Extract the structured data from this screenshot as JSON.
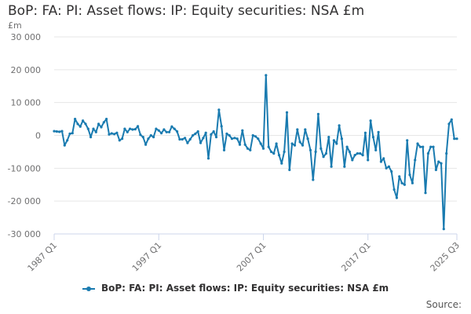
{
  "title": "BoP: FA: PI: Asset flows: IP: Equity securities: NSA £m",
  "unit_label": "£m",
  "source_label": "Source:",
  "colors": {
    "series": "#1a7bb0",
    "grid": "#e6e6e6",
    "axis": "#ccd6eb",
    "text": "#707071"
  },
  "chart_data": {
    "type": "line",
    "ylim": [
      -30000,
      30000
    ],
    "y_ticks": [
      30000,
      20000,
      10000,
      0,
      -10000,
      -20000,
      -30000
    ],
    "y_tick_labels": [
      "30 000",
      "20 000",
      "10 000",
      "0",
      "-10 000",
      "-20 000",
      "-30 000"
    ],
    "x_range": [
      "1987 Q1",
      "2025 Q3"
    ],
    "x_tick_labels": [
      "1987 Q1",
      "1997 Q1",
      "2007 Q1",
      "2017 Q1",
      "2025 Q3"
    ],
    "grid": "horizontal",
    "legend_position": "bottom",
    "series": [
      {
        "name": "BoP: FA: PI: Asset flows: IP: Equity securities: NSA £m",
        "points": [
          [
            "1987 Q1",
            1300
          ],
          [
            "1987 Q2",
            1200
          ],
          [
            "1987 Q3",
            1100
          ],
          [
            "1987 Q4",
            1300
          ],
          [
            "1988 Q1",
            -3000
          ],
          [
            "1988 Q2",
            -1500
          ],
          [
            "1988 Q3",
            500
          ],
          [
            "1988 Q4",
            700
          ],
          [
            "1989 Q1",
            5000
          ],
          [
            "1989 Q2",
            3500
          ],
          [
            "1989 Q3",
            2700
          ],
          [
            "1989 Q4",
            4500
          ],
          [
            "1990 Q1",
            3500
          ],
          [
            "1990 Q2",
            2000
          ],
          [
            "1990 Q3",
            -500
          ],
          [
            "1990 Q4",
            2000
          ],
          [
            "1991 Q1",
            1000
          ],
          [
            "1991 Q2",
            3500
          ],
          [
            "1991 Q3",
            2500
          ],
          [
            "1991 Q4",
            4000
          ],
          [
            "1992 Q1",
            5000
          ],
          [
            "1992 Q2",
            300
          ],
          [
            "1992 Q3",
            600
          ],
          [
            "1992 Q4",
            400
          ],
          [
            "1993 Q1",
            800
          ],
          [
            "1993 Q2",
            -1500
          ],
          [
            "1993 Q3",
            -1000
          ],
          [
            "1993 Q4",
            2000
          ],
          [
            "1994 Q1",
            1000
          ],
          [
            "1994 Q2",
            2000
          ],
          [
            "1994 Q3",
            1800
          ],
          [
            "1994 Q4",
            1900
          ],
          [
            "1995 Q1",
            2800
          ],
          [
            "1995 Q2",
            200
          ],
          [
            "1995 Q3",
            -500
          ],
          [
            "1995 Q4",
            -2800
          ],
          [
            "1996 Q1",
            -1000
          ],
          [
            "1996 Q2",
            0
          ],
          [
            "1996 Q3",
            -500
          ],
          [
            "1996 Q4",
            2000
          ],
          [
            "1997 Q1",
            1500
          ],
          [
            "1997 Q2",
            700
          ],
          [
            "1997 Q3",
            1800
          ],
          [
            "1997 Q4",
            1000
          ],
          [
            "1998 Q1",
            1000
          ],
          [
            "1998 Q2",
            2700
          ],
          [
            "1998 Q3",
            2000
          ],
          [
            "1998 Q4",
            1200
          ],
          [
            "1999 Q1",
            -1200
          ],
          [
            "1999 Q2",
            -1200
          ],
          [
            "1999 Q3",
            -800
          ],
          [
            "1999 Q4",
            -2300
          ],
          [
            "2000 Q1",
            -1200
          ],
          [
            "2000 Q2",
            0
          ],
          [
            "2000 Q3",
            500
          ],
          [
            "2000 Q4",
            1200
          ],
          [
            "2001 Q1",
            -2300
          ],
          [
            "2001 Q2",
            -800
          ],
          [
            "2001 Q3",
            800
          ],
          [
            "2001 Q4",
            -7000
          ],
          [
            "2002 Q1",
            300
          ],
          [
            "2002 Q2",
            1200
          ],
          [
            "2002 Q3",
            -500
          ],
          [
            "2002 Q4",
            7800
          ],
          [
            "2003 Q1",
            2800
          ],
          [
            "2003 Q2",
            -4500
          ],
          [
            "2003 Q3",
            500
          ],
          [
            "2003 Q4",
            0
          ],
          [
            "2004 Q1",
            -1000
          ],
          [
            "2004 Q2",
            -800
          ],
          [
            "2004 Q3",
            -1000
          ],
          [
            "2004 Q4",
            -2800
          ],
          [
            "2005 Q1",
            1500
          ],
          [
            "2005 Q2",
            -2800
          ],
          [
            "2005 Q3",
            -4000
          ],
          [
            "2005 Q4",
            -4500
          ],
          [
            "2006 Q1",
            0
          ],
          [
            "2006 Q2",
            -300
          ],
          [
            "2006 Q3",
            -1000
          ],
          [
            "2006 Q4",
            -2500
          ],
          [
            "2007 Q1",
            -4000
          ],
          [
            "2007 Q2",
            18300
          ],
          [
            "2007 Q3",
            -3500
          ],
          [
            "2007 Q4",
            -5000
          ],
          [
            "2008 Q1",
            -5500
          ],
          [
            "2008 Q2",
            -2500
          ],
          [
            "2008 Q3",
            -6000
          ],
          [
            "2008 Q4",
            -8500
          ],
          [
            "2009 Q1",
            -5000
          ],
          [
            "2009 Q2",
            7000
          ],
          [
            "2009 Q3",
            -10500
          ],
          [
            "2009 Q4",
            -2500
          ],
          [
            "2010 Q1",
            -3000
          ],
          [
            "2010 Q2",
            1800
          ],
          [
            "2010 Q3",
            -2000
          ],
          [
            "2010 Q4",
            -3000
          ],
          [
            "2011 Q1",
            1800
          ],
          [
            "2011 Q2",
            -1000
          ],
          [
            "2011 Q3",
            -4500
          ],
          [
            "2011 Q4",
            -13500
          ],
          [
            "2012 Q1",
            -5000
          ],
          [
            "2012 Q2",
            6500
          ],
          [
            "2012 Q3",
            -4000
          ],
          [
            "2012 Q4",
            -6500
          ],
          [
            "2013 Q1",
            -5500
          ],
          [
            "2013 Q2",
            -500
          ],
          [
            "2013 Q3",
            -9500
          ],
          [
            "2013 Q4",
            -1500
          ],
          [
            "2014 Q1",
            -2500
          ],
          [
            "2014 Q2",
            3000
          ],
          [
            "2014 Q3",
            -1000
          ],
          [
            "2014 Q4",
            -9500
          ],
          [
            "2015 Q1",
            -3500
          ],
          [
            "2015 Q2",
            -5000
          ],
          [
            "2015 Q3",
            -7500
          ],
          [
            "2015 Q4",
            -6000
          ],
          [
            "2016 Q1",
            -5500
          ],
          [
            "2016 Q2",
            -5500
          ],
          [
            "2016 Q3",
            -6000
          ],
          [
            "2016 Q4",
            800
          ],
          [
            "2017 Q1",
            -7500
          ],
          [
            "2017 Q2",
            4500
          ],
          [
            "2017 Q3",
            -500
          ],
          [
            "2017 Q4",
            -4500
          ],
          [
            "2018 Q1",
            1000
          ],
          [
            "2018 Q2",
            -8000
          ],
          [
            "2018 Q3",
            -7000
          ],
          [
            "2018 Q4",
            -10000
          ],
          [
            "2019 Q1",
            -9500
          ],
          [
            "2019 Q2",
            -11000
          ],
          [
            "2019 Q3",
            -16500
          ],
          [
            "2019 Q4",
            -19000
          ],
          [
            "2020 Q1",
            -12500
          ],
          [
            "2020 Q2",
            -14500
          ],
          [
            "2020 Q3",
            -15000
          ],
          [
            "2020 Q4",
            -1500
          ],
          [
            "2021 Q1",
            -12000
          ],
          [
            "2021 Q2",
            -14500
          ],
          [
            "2021 Q3",
            -7500
          ],
          [
            "2021 Q4",
            -2500
          ],
          [
            "2022 Q1",
            -3500
          ],
          [
            "2022 Q2",
            -3500
          ],
          [
            "2022 Q3",
            -17500
          ],
          [
            "2022 Q4",
            -5500
          ],
          [
            "2023 Q1",
            -3500
          ],
          [
            "2023 Q2",
            -3500
          ],
          [
            "2023 Q3",
            -10500
          ],
          [
            "2023 Q4",
            -8000
          ],
          [
            "2024 Q1",
            -8500
          ],
          [
            "2024 Q2",
            -28500
          ],
          [
            "2024 Q3",
            -5500
          ],
          [
            "2024 Q4",
            3500
          ],
          [
            "2025 Q1",
            4800
          ],
          [
            "2025 Q2",
            -1000
          ],
          [
            "2025 Q3",
            -1000
          ]
        ]
      }
    ]
  }
}
